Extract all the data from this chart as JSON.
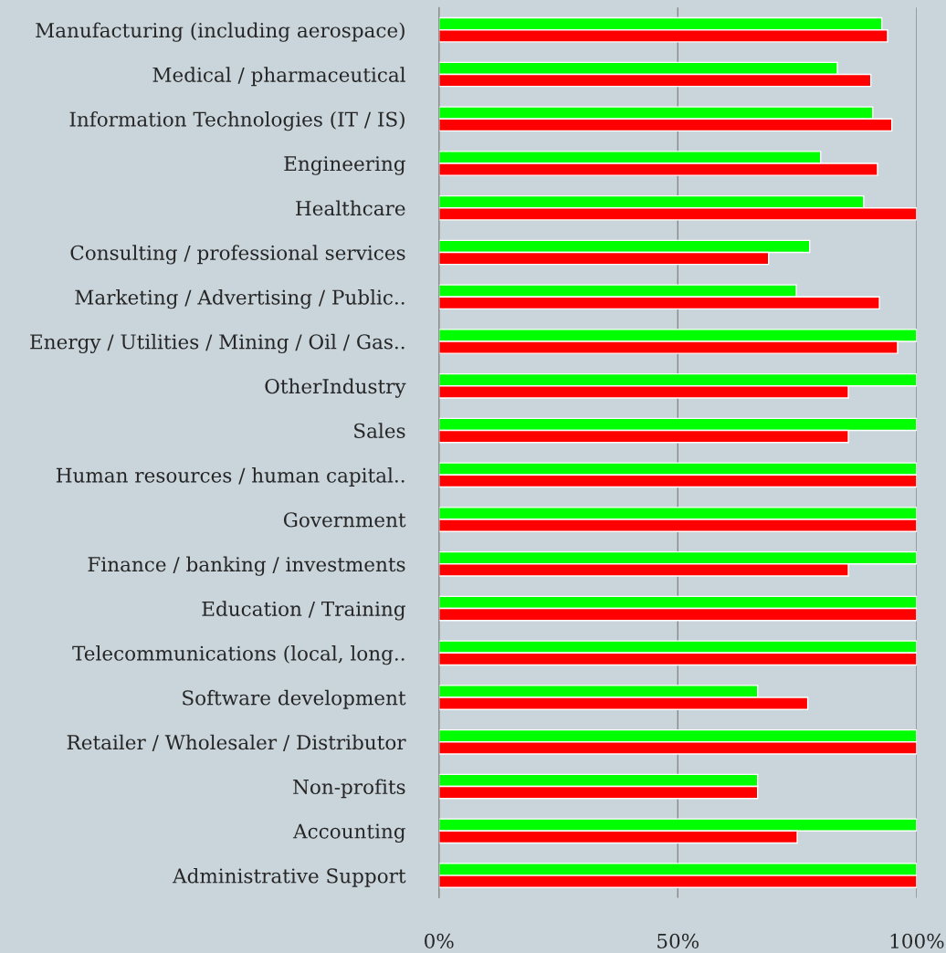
{
  "chart_data": {
    "type": "bar",
    "orientation": "horizontal",
    "categories": [
      "Manufacturing (including aerospace)",
      "Medical / pharmaceutical",
      "Information Technologies (IT / IS)",
      "Engineering",
      "Healthcare",
      "Consulting / professional services",
      "Marketing / Advertising / Public..",
      "Energy / Utilities / Mining / Oil / Gas..",
      "OtherIndustry",
      "Sales",
      "Human resources / human capital..",
      "Government",
      "Finance / banking / investments",
      "Education / Training",
      "Telecommunications (local, long..",
      "Software development",
      "Retailer / Wholesaler / Distributor",
      "Non-profits",
      "Accounting",
      "Administrative Support"
    ],
    "series": [
      {
        "color": "#00ff00",
        "values": [
          92.7,
          83.4,
          90.8,
          79.9,
          88.9,
          77.6,
          74.8,
          100,
          100,
          100,
          100,
          100,
          100,
          100,
          100,
          66.7,
          100,
          66.7,
          100,
          100
        ]
      },
      {
        "color": "#ff0000",
        "values": [
          93.9,
          90.4,
          94.8,
          91.8,
          100,
          69.0,
          92.2,
          96.0,
          85.7,
          85.7,
          100,
          100,
          85.7,
          100,
          100,
          77.2,
          100,
          66.7,
          75.0,
          100
        ]
      }
    ],
    "xlim": [
      0,
      100
    ],
    "xticks": [
      {
        "value": 0,
        "label": "0%"
      },
      {
        "value": 50,
        "label": "50%"
      },
      {
        "value": 100,
        "label": "100%"
      }
    ],
    "grid": "x",
    "legend": false
  }
}
